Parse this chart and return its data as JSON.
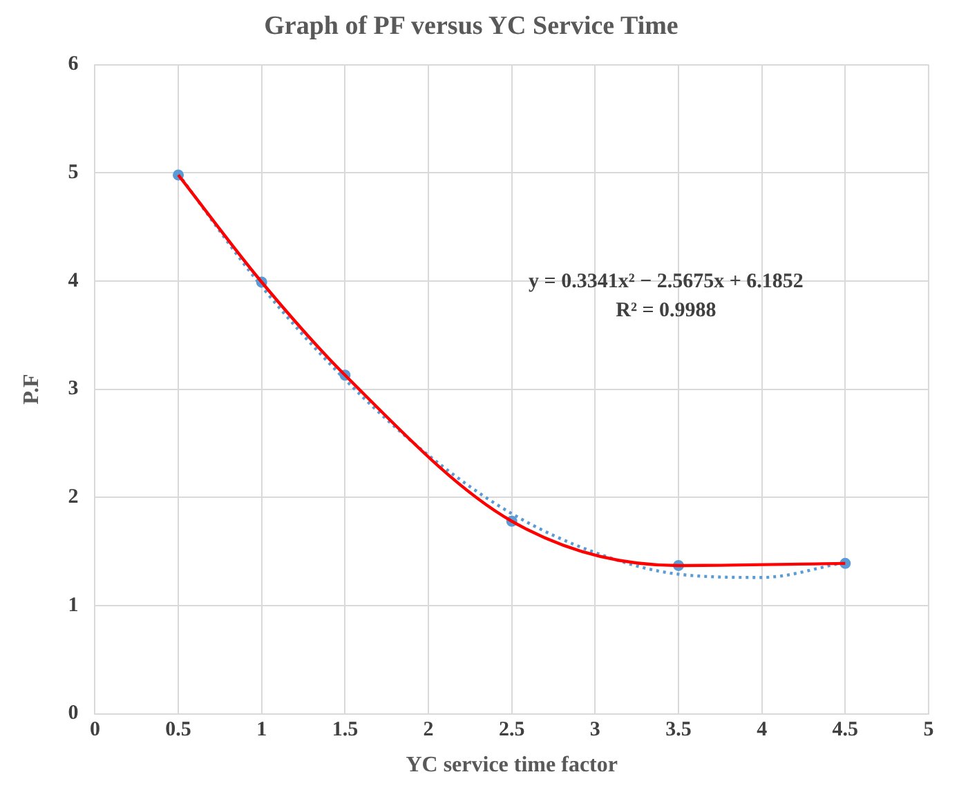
{
  "chart_data": {
    "type": "line",
    "title": "Graph of PF versus YC Service Time",
    "xlabel": "YC service time factor",
    "ylabel": "P.F",
    "x": [
      0.5,
      1,
      1.5,
      2.5,
      3.5,
      4.5
    ],
    "series": [
      {
        "color": "#ff0000",
        "values": [
          4.98,
          3.99,
          3.13,
          1.78,
          1.37,
          1.39
        ],
        "marker": "none",
        "line_style": "solid"
      },
      {
        "type": "scatter",
        "color": "#5b9bd5",
        "values": [
          4.98,
          3.99,
          3.13,
          1.78,
          1.37,
          1.39
        ],
        "marker": "circle"
      },
      {
        "type": "line",
        "color": "#5b9bd5",
        "x": [
          0.5,
          1,
          1.5,
          2,
          2.5,
          3,
          3.5,
          4,
          4.5
        ],
        "values": [
          4.99,
          3.95,
          3.09,
          2.39,
          1.85,
          1.49,
          1.29,
          1.26,
          1.4
        ],
        "marker": "none",
        "line_style": "dotted"
      }
    ],
    "xlim": [
      0,
      5
    ],
    "xticks": [
      0,
      0.5,
      1,
      1.5,
      2,
      2.5,
      3,
      3.5,
      4,
      4.5,
      5
    ],
    "ylim": [
      0,
      6
    ],
    "yticks": [
      0,
      1,
      2,
      3,
      4,
      5,
      6
    ],
    "grid": true,
    "annotations": [
      "y = 0.3341x² − 2.5675x + 6.1852",
      "R² = 0.9988"
    ]
  }
}
